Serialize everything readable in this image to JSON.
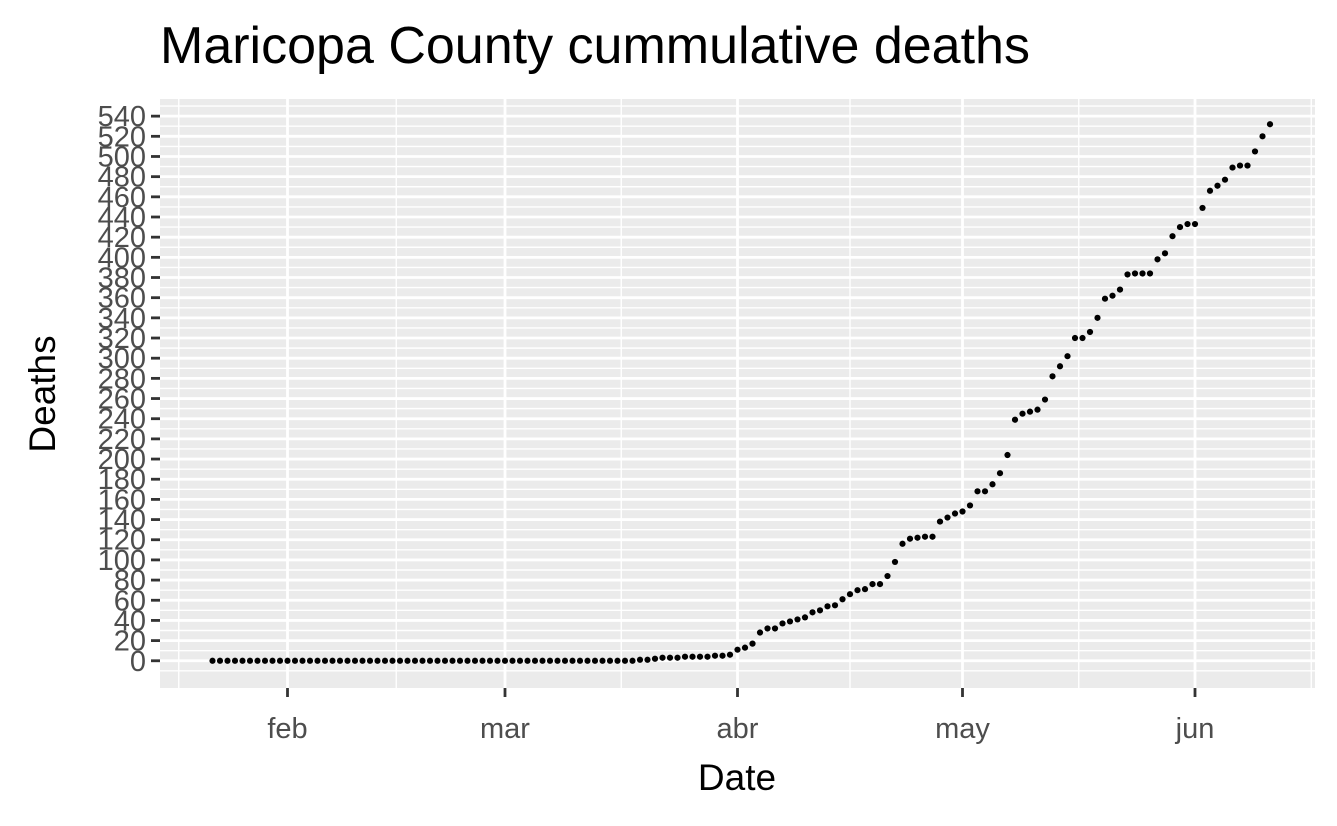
{
  "chart_data": {
    "type": "scatter",
    "title": "Maricopa County cummulative deaths",
    "xlabel": "Date",
    "ylabel": "Deaths",
    "x_axis": {
      "type": "date",
      "ticks": [
        {
          "date": "2020-02-01",
          "label": "feb"
        },
        {
          "date": "2020-03-01",
          "label": "mar"
        },
        {
          "date": "2020-04-01",
          "label": "abr"
        },
        {
          "date": "2020-05-01",
          "label": "may"
        },
        {
          "date": "2020-06-01",
          "label": "jun"
        }
      ],
      "range": [
        "2020-01-15",
        "2020-06-17"
      ]
    },
    "y_axis": {
      "ticks": [
        0,
        20,
        40,
        60,
        80,
        100,
        120,
        140,
        160,
        180,
        200,
        220,
        240,
        260,
        280,
        300,
        320,
        340,
        360,
        380,
        400,
        420,
        440,
        460,
        480,
        500,
        520,
        540
      ],
      "range": [
        -27,
        557
      ]
    },
    "grid": true,
    "points_start_date": "2020-01-22",
    "values": [
      0,
      0,
      0,
      0,
      0,
      0,
      0,
      0,
      0,
      0,
      0,
      0,
      0,
      0,
      0,
      0,
      0,
      0,
      0,
      0,
      0,
      0,
      0,
      0,
      0,
      0,
      0,
      0,
      0,
      0,
      0,
      0,
      0,
      0,
      0,
      0,
      0,
      0,
      0,
      0,
      0,
      0,
      0,
      0,
      0,
      0,
      0,
      0,
      0,
      0,
      0,
      0,
      0,
      0,
      0,
      0,
      0,
      1,
      1,
      2,
      3,
      3,
      3,
      4,
      4,
      4,
      4,
      5,
      5,
      6,
      11,
      13,
      17,
      28,
      32,
      32,
      37,
      39,
      41,
      43,
      48,
      50,
      54,
      55,
      61,
      66,
      70,
      71,
      76,
      76,
      84,
      98,
      116,
      121,
      122,
      123,
      123,
      138,
      142,
      146,
      148,
      154,
      168,
      168,
      175,
      186,
      204,
      239,
      245,
      247,
      249,
      259,
      282,
      292,
      302,
      320,
      320,
      326,
      340,
      359,
      362,
      368,
      383,
      384,
      384,
      384,
      398,
      404,
      421,
      430,
      433,
      433,
      449,
      466,
      471,
      477,
      489,
      491,
      491,
      505,
      520,
      532
    ]
  }
}
